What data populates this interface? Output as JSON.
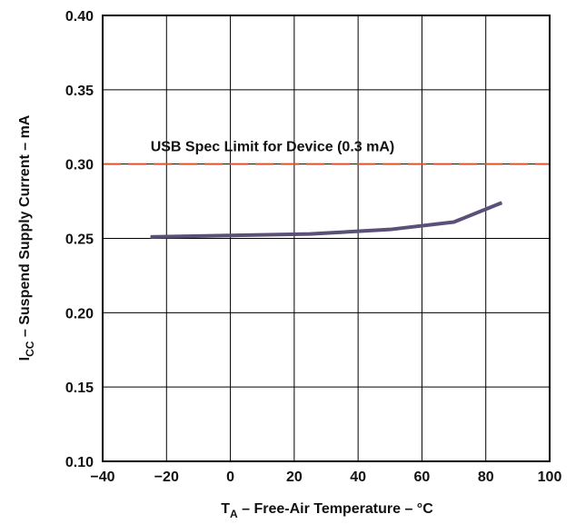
{
  "chart_data": {
    "type": "line",
    "xlabel": {
      "main": "T",
      "sub": "A",
      "rest": " – Free-Air Temperature – °C"
    },
    "ylabel": {
      "main": "I",
      "sub": "CC",
      "rest": " – Suspend Supply Current – mA"
    },
    "xlim": [
      -40,
      100
    ],
    "ylim": [
      0.1,
      0.4
    ],
    "xticks": [
      -40,
      -20,
      0,
      20,
      40,
      60,
      80,
      100
    ],
    "xtick_labels": [
      "−40",
      "−20",
      "0",
      "20",
      "40",
      "60",
      "80",
      "100"
    ],
    "yticks": [
      0.1,
      0.15,
      0.2,
      0.25,
      0.3,
      0.35,
      0.4
    ],
    "ytick_labels": [
      "0.10",
      "0.15",
      "0.20",
      "0.25",
      "0.30",
      "0.35",
      "0.40"
    ],
    "grid": true,
    "series": [
      {
        "x": [
          -25,
          0,
          25,
          50,
          70,
          85
        ],
        "y": [
          0.251,
          0.252,
          0.253,
          0.256,
          0.261,
          0.274
        ],
        "color": "#5a5078"
      }
    ],
    "reference_line": {
      "y": 0.3,
      "label": "USB Spec Limit for Device (0.3 mA)",
      "color": "#d9552b",
      "style": "dashed"
    }
  }
}
